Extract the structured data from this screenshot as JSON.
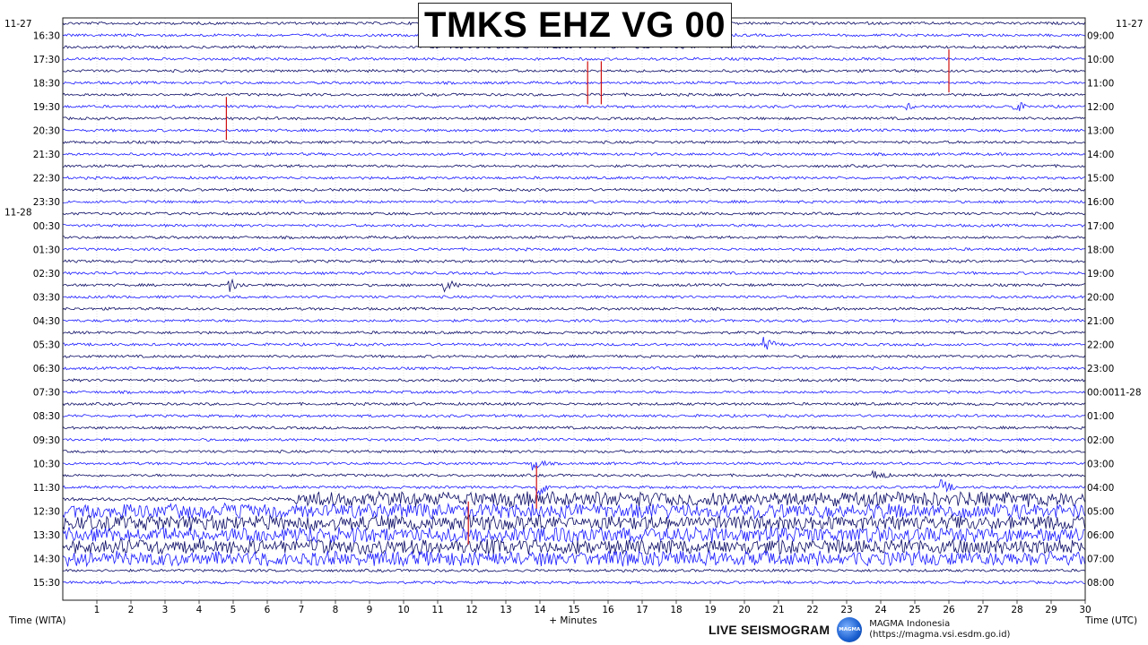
{
  "title": "TMKS EHZ VG 00",
  "chart_data": {
    "type": "line",
    "title": "TMKS EHZ VG 00",
    "xlabel": "+ Minutes",
    "left_axis_label": "Time (WITA)",
    "right_axis_label": "Time (UTC)",
    "xlim": [
      0,
      30
    ],
    "x_ticks": [
      "1",
      "2",
      "3",
      "4",
      "5",
      "6",
      "7",
      "8",
      "9",
      "10",
      "11",
      "12",
      "13",
      "14",
      "15",
      "16",
      "17",
      "18",
      "19",
      "20",
      "21",
      "22",
      "23",
      "24",
      "25",
      "26",
      "27",
      "28",
      "29",
      "30"
    ],
    "rows_total": 48,
    "row_minutes": 30,
    "left_hour_labels": [
      "16:30",
      "17:30",
      "18:30",
      "19:30",
      "20:30",
      "21:30",
      "22:30",
      "23:30",
      "00:30",
      "01:30",
      "02:30",
      "03:30",
      "04:30",
      "05:30",
      "06:30",
      "07:30",
      "08:30",
      "09:30",
      "10:30",
      "11:30",
      "12:30",
      "13:30",
      "14:30",
      "15:30"
    ],
    "right_hour_labels": [
      "09:00",
      "10:00",
      "11:00",
      "12:00",
      "13:00",
      "14:00",
      "15:00",
      "16:00",
      "17:00",
      "18:00",
      "19:00",
      "20:00",
      "21:00",
      "22:00",
      "23:00",
      "00:00",
      "01:00",
      "02:00",
      "03:00",
      "04:00",
      "05:00",
      "06:00",
      "07:00",
      "08:00"
    ],
    "date_labels": {
      "left_start": "11-27",
      "right_start": "11-27",
      "left_change": "11-28",
      "right_change": "11-28"
    },
    "trace_colors": {
      "odd": "#0a0a66",
      "even": "#1a1aff"
    },
    "events": [
      {
        "row": 7,
        "minute": 27.9,
        "amplitude": "medium"
      },
      {
        "row": 7,
        "minute": 24.8,
        "amplitude": "small"
      },
      {
        "row": 22,
        "minute": 4.9,
        "amplitude": "medium"
      },
      {
        "row": 22,
        "minute": 11.2,
        "amplitude": "medium"
      },
      {
        "row": 27,
        "minute": 20.6,
        "amplitude": "medium"
      },
      {
        "row": 37,
        "minute": 13.8,
        "amplitude": "medium"
      },
      {
        "row": 38,
        "minute": 23.8,
        "amplitude": "medium"
      },
      {
        "row": 39,
        "minute": 13.9,
        "amplitude": "large"
      },
      {
        "row": 39,
        "minute": 25.8,
        "amplitude": "medium"
      }
    ],
    "tremor_onset": {
      "row": 40,
      "minute": 6.8
    },
    "red_marks": [
      {
        "row": 8,
        "minute": 4.8
      },
      {
        "row": 5,
        "minute": 15.4
      },
      {
        "row": 5,
        "minute": 15.8
      },
      {
        "row": 4,
        "minute": 26.0
      },
      {
        "row": 39,
        "minute": 13.9
      },
      {
        "row": 42,
        "minute": 11.9
      }
    ]
  },
  "footer": {
    "live_label": "LIVE SEISMOGRAM",
    "org_name": "MAGMA Indonesia",
    "org_url": "(https://magma.vsi.esdm.go.id)",
    "logo_text": "MAGMA"
  }
}
